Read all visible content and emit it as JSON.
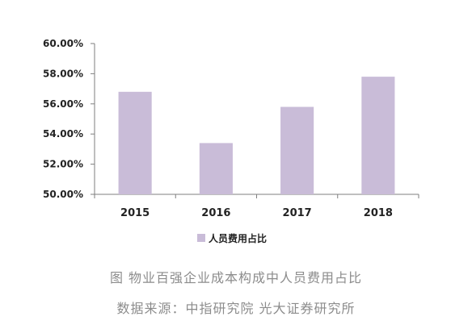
{
  "chart_data": {
    "type": "bar",
    "categories": [
      "2015",
      "2016",
      "2017",
      "2018"
    ],
    "series": [
      {
        "name": "人员费用占比",
        "values": [
          56.8,
          53.4,
          55.8,
          57.8
        ]
      }
    ],
    "ylim": [
      50,
      60
    ],
    "yticks": [
      50,
      52,
      54,
      56,
      58,
      60
    ],
    "ytick_labels": [
      "50.00%",
      "52.00%",
      "54.00%",
      "56.00%",
      "58.00%",
      "60.00%"
    ],
    "legend_position": "bottom-center",
    "grid": false,
    "bar_color": "#c9bcd8",
    "axis_color": "#7f7f7f"
  },
  "caption": {
    "title": "图 物业百强企业成本构成中人员费用占比",
    "source": "数据来源：中指研究院 光大证券研究所"
  }
}
